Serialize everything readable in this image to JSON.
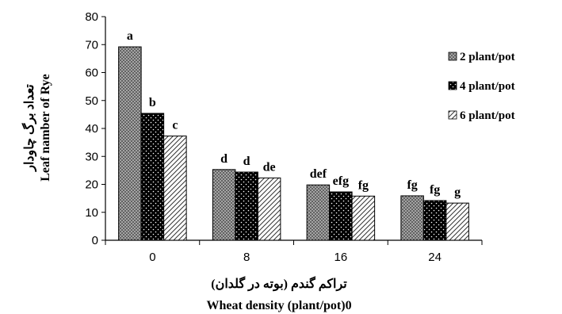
{
  "chart_data": {
    "type": "bar",
    "categories": [
      "0",
      "8",
      "16",
      "24"
    ],
    "series": [
      {
        "name": "2 plant/pot",
        "values": [
          69.2,
          25.3,
          19.8,
          15.9
        ],
        "pattern": "crosshatch",
        "color": "#808080"
      },
      {
        "name": "4 plant/pot",
        "values": [
          45.4,
          24.4,
          17.3,
          14.2
        ],
        "pattern": "dotted-black",
        "color": "#000000"
      },
      {
        "name": "6 plant/pot",
        "values": [
          37.3,
          22.3,
          15.8,
          13.3
        ],
        "pattern": "diagonal",
        "color": "#ffffff"
      }
    ],
    "significance_letters": [
      [
        "a",
        "b",
        "c"
      ],
      [
        "d",
        "d",
        "de"
      ],
      [
        "def",
        "efg",
        "fg"
      ],
      [
        "fg",
        "fg",
        "g"
      ]
    ],
    "yticks": [
      0,
      10,
      20,
      30,
      40,
      50,
      60,
      70,
      80
    ],
    "ylim": [
      0,
      80
    ],
    "ylabel_fa": "تعداد برگ چاودار",
    "ylabel_en": "Leaf namber of Rye",
    "xlabel_fa": "تراکم گندم (بوته در گلدان)",
    "xlabel_en": "Wheat density (plant/pot)0",
    "legend_position": "right",
    "grid": false
  }
}
